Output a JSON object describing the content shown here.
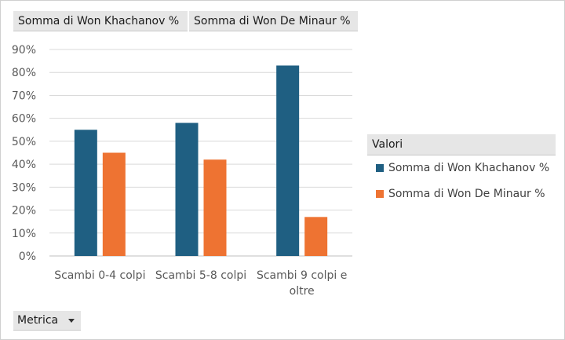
{
  "field_buttons": [
    "Somma di Won Khachanov %",
    "Somma di Won De Minaur %"
  ],
  "legend": {
    "header": "Valori",
    "items": [
      "Somma di Won Khachanov %",
      "Somma di Won De Minaur %"
    ]
  },
  "filter_button": {
    "label": "Metrica"
  },
  "colors": {
    "khachanov": "#1f5f82",
    "deminaur": "#ee7332",
    "gridline": "#d9d9d9",
    "axis": "#bfbfbf"
  },
  "chart_data": {
    "type": "bar",
    "categories": [
      [
        "Scambi 0-4 colpi"
      ],
      [
        "Scambi 5-8 colpi"
      ],
      [
        "Scambi 9 colpi e",
        "oltre"
      ]
    ],
    "series": [
      {
        "name": "Somma di Won Khachanov %",
        "values": [
          55,
          58,
          83
        ]
      },
      {
        "name": "Somma di Won De Minaur %",
        "values": [
          45,
          42,
          17
        ]
      }
    ],
    "ylim": [
      0,
      90
    ],
    "yticks": [
      0,
      10,
      20,
      30,
      40,
      50,
      60,
      70,
      80,
      90
    ],
    "ytick_labels": [
      "0%",
      "10%",
      "20%",
      "30%",
      "40%",
      "50%",
      "60%",
      "70%",
      "80%",
      "90%"
    ],
    "grid": true,
    "legend_position": "right"
  }
}
